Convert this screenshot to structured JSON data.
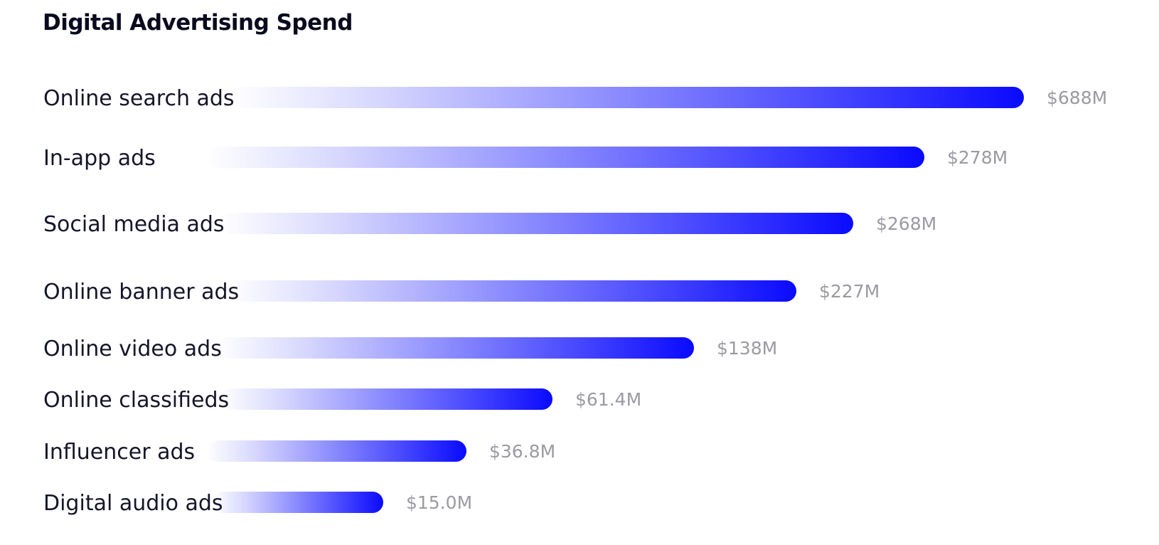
{
  "chart_data": {
    "type": "bar",
    "orientation": "horizontal",
    "title": "Digital Advertising Spend",
    "categories": [
      "Online search ads",
      "In-app ads",
      "Social media ads",
      "Online banner ads",
      "Online video ads",
      "Online classifieds",
      "Influencer ads",
      "Digital audio ads"
    ],
    "values": [
      688,
      278,
      268,
      227,
      138,
      61.4,
      36.8,
      15.0
    ],
    "value_labels": [
      "$688M",
      "$278M",
      "$268M",
      "$227M",
      "$138M",
      "$61.4M",
      "$36.8M",
      "$15.0M"
    ],
    "unit": "M",
    "grid": false,
    "legend": "none",
    "colors": {
      "bar_start": "#ffffff",
      "bar_end": "#0a0aff",
      "category_text": "#15152a",
      "value_text": "#9a9aa3",
      "title_text": "#0a0a1e"
    }
  }
}
